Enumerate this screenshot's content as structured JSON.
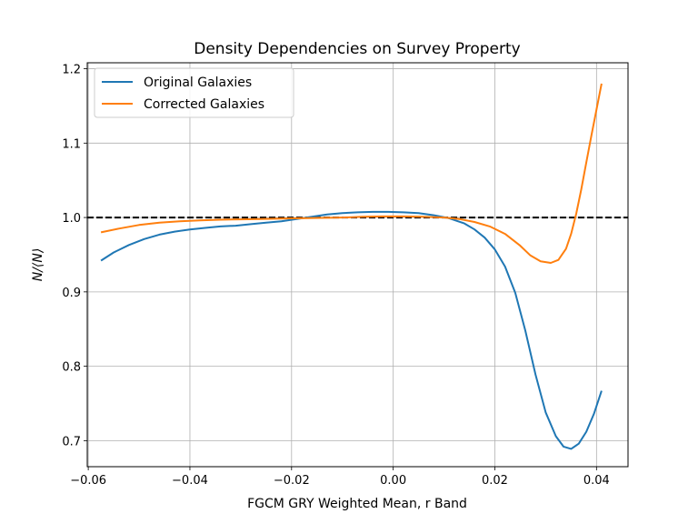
{
  "chart_data": {
    "type": "line",
    "title": "Density Dependencies on Survey Property",
    "xlabel": "FGCM GRY Weighted Mean, r Band",
    "ylabel": "N/⟨N⟩",
    "xlim": [
      -0.0602,
      0.0462
    ],
    "ylim": [
      0.665,
      1.208
    ],
    "xticks": [
      -0.06,
      -0.04,
      -0.02,
      0.0,
      0.02,
      0.04
    ],
    "xtick_labels": [
      "−0.06",
      "−0.04",
      "−0.02",
      "0.00",
      "0.02",
      "0.04"
    ],
    "yticks": [
      0.7,
      0.8,
      0.9,
      1.0,
      1.1,
      1.2
    ],
    "ytick_labels": [
      "0.7",
      "0.8",
      "0.9",
      "1.0",
      "1.1",
      "1.2"
    ],
    "grid": true,
    "legend_position": "top-left",
    "reference_line": {
      "y": 1.0,
      "style": "dashed",
      "color": "#000000"
    },
    "series": [
      {
        "name": "Original Galaxies",
        "color": "#1f77b4",
        "points": [
          [
            -0.0575,
            0.942
          ],
          [
            -0.055,
            0.953
          ],
          [
            -0.052,
            0.963
          ],
          [
            -0.049,
            0.971
          ],
          [
            -0.046,
            0.977
          ],
          [
            -0.043,
            0.981
          ],
          [
            -0.04,
            0.984
          ],
          [
            -0.037,
            0.986
          ],
          [
            -0.034,
            0.988
          ],
          [
            -0.031,
            0.989
          ],
          [
            -0.028,
            0.991
          ],
          [
            -0.025,
            0.993
          ],
          [
            -0.022,
            0.995
          ],
          [
            -0.019,
            0.998
          ],
          [
            -0.016,
            1.001
          ],
          [
            -0.013,
            1.004
          ],
          [
            -0.01,
            1.006
          ],
          [
            -0.007,
            1.007
          ],
          [
            -0.004,
            1.0075
          ],
          [
            -0.001,
            1.0075
          ],
          [
            0.002,
            1.007
          ],
          [
            0.005,
            1.006
          ],
          [
            0.008,
            1.003
          ],
          [
            0.011,
            0.999
          ],
          [
            0.014,
            0.992
          ],
          [
            0.016,
            0.984
          ],
          [
            0.018,
            0.973
          ],
          [
            0.02,
            0.957
          ],
          [
            0.022,
            0.934
          ],
          [
            0.024,
            0.899
          ],
          [
            0.026,
            0.848
          ],
          [
            0.028,
            0.789
          ],
          [
            0.03,
            0.738
          ],
          [
            0.032,
            0.706
          ],
          [
            0.0335,
            0.692
          ],
          [
            0.035,
            0.689
          ],
          [
            0.0365,
            0.696
          ],
          [
            0.038,
            0.712
          ],
          [
            0.0395,
            0.736
          ],
          [
            0.041,
            0.767
          ]
        ]
      },
      {
        "name": "Corrected Galaxies",
        "color": "#ff7f0e",
        "points": [
          [
            -0.0575,
            0.98
          ],
          [
            -0.054,
            0.985
          ],
          [
            -0.05,
            0.99
          ],
          [
            -0.046,
            0.993
          ],
          [
            -0.042,
            0.995
          ],
          [
            -0.038,
            0.996
          ],
          [
            -0.034,
            0.997
          ],
          [
            -0.03,
            0.9975
          ],
          [
            -0.026,
            0.998
          ],
          [
            -0.022,
            0.9985
          ],
          [
            -0.018,
            0.999
          ],
          [
            -0.014,
            0.9995
          ],
          [
            -0.01,
            1.0
          ],
          [
            -0.006,
            1.001
          ],
          [
            -0.002,
            1.0015
          ],
          [
            0.002,
            1.0015
          ],
          [
            0.006,
            1.001
          ],
          [
            0.01,
            1.0
          ],
          [
            0.013,
            0.998
          ],
          [
            0.016,
            0.994
          ],
          [
            0.019,
            0.988
          ],
          [
            0.022,
            0.978
          ],
          [
            0.025,
            0.962
          ],
          [
            0.027,
            0.949
          ],
          [
            0.029,
            0.941
          ],
          [
            0.031,
            0.939
          ],
          [
            0.0325,
            0.943
          ],
          [
            0.034,
            0.958
          ],
          [
            0.035,
            0.978
          ],
          [
            0.036,
            1.005
          ],
          [
            0.037,
            1.038
          ],
          [
            0.038,
            1.074
          ],
          [
            0.039,
            1.11
          ],
          [
            0.04,
            1.145
          ],
          [
            0.041,
            1.18
          ]
        ]
      }
    ]
  }
}
